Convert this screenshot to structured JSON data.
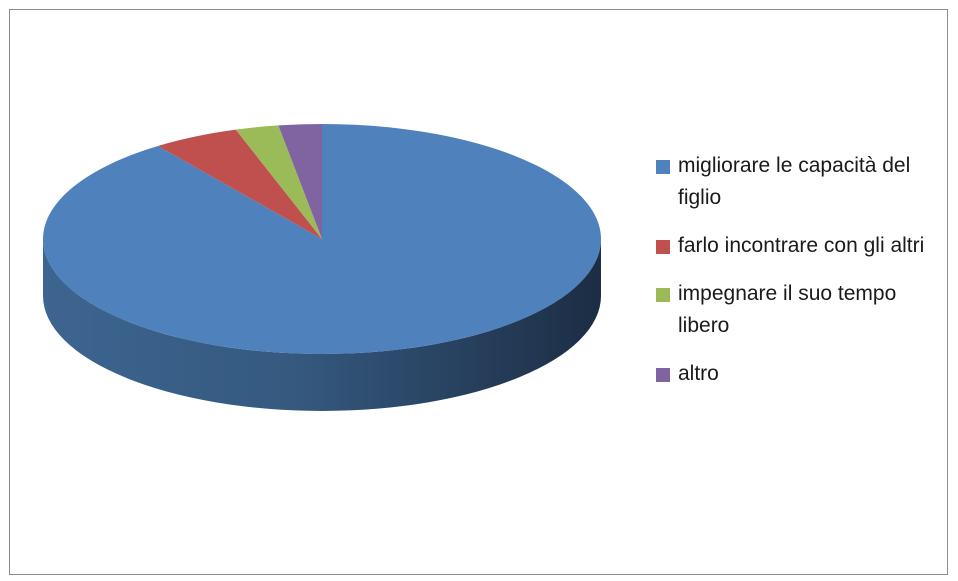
{
  "chart_data": {
    "type": "pie",
    "title": "",
    "labels": [
      "migliorare le capacità del figlio",
      "farlo incontrare con gli altri",
      "impegnare il suo tempo libero",
      "altro"
    ],
    "values": [
      90,
      5,
      2.5,
      2.5
    ],
    "colors": [
      "#4F81BD",
      "#C0504D",
      "#9BBB59",
      "#8064A2"
    ],
    "legend_position": "right",
    "style": "3d"
  }
}
